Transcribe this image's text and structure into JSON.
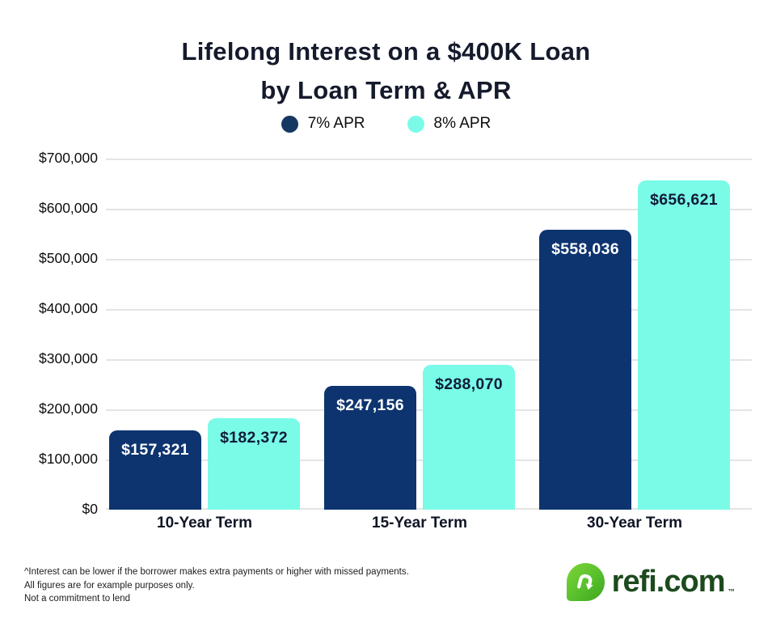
{
  "title": {
    "line1": "Lifelong Interest on a $400K Loan",
    "line2": "by Loan Term & APR"
  },
  "legend": [
    {
      "label": "7% APR",
      "color": "#143862"
    },
    {
      "label": "8% APR",
      "color": "#7bfbe7"
    }
  ],
  "chart_data": {
    "type": "bar",
    "title": "Lifelong Interest on a $400K Loan by Loan Term & APR",
    "categories": [
      "10-Year Term",
      "15-Year Term",
      "30-Year Term"
    ],
    "series": [
      {
        "name": "7% APR",
        "color": "#0d346f",
        "values": [
          157321,
          247156,
          558036
        ],
        "labels": [
          "$157,321",
          "$247,156",
          "$558,036"
        ],
        "label_color": "#ffffff"
      },
      {
        "name": "8% APR",
        "color": "#79fbe7",
        "values": [
          182372,
          288070,
          656621
        ],
        "labels": [
          "$182,372",
          "$288,070",
          "$656,621"
        ],
        "label_color": "#101c38"
      }
    ],
    "xlabel": "",
    "ylabel": "",
    "ylim": [
      0,
      700000
    ],
    "y_ticks": [
      {
        "value": 0,
        "label": "$0"
      },
      {
        "value": 100000,
        "label": "$100,000"
      },
      {
        "value": 200000,
        "label": "$200,000"
      },
      {
        "value": 300000,
        "label": "$300,000"
      },
      {
        "value": 400000,
        "label": "$400,000"
      },
      {
        "value": 500000,
        "label": "$500,000"
      },
      {
        "value": 600000,
        "label": "$600,000"
      },
      {
        "value": 700000,
        "label": "$700,000"
      }
    ],
    "grid": true,
    "legend_position": "top"
  },
  "footnotes": [
    "^Interest can be lower if the borrower makes extra payments or higher with missed payments.",
    "All figures are for example purposes only.",
    "Not a commitment to lend"
  ],
  "logo": {
    "text": "refi.com",
    "trademark": "TM",
    "icon": "refi-pin-icon",
    "text_color": "#1d4a1e",
    "icon_color": "#54bd2a"
  }
}
